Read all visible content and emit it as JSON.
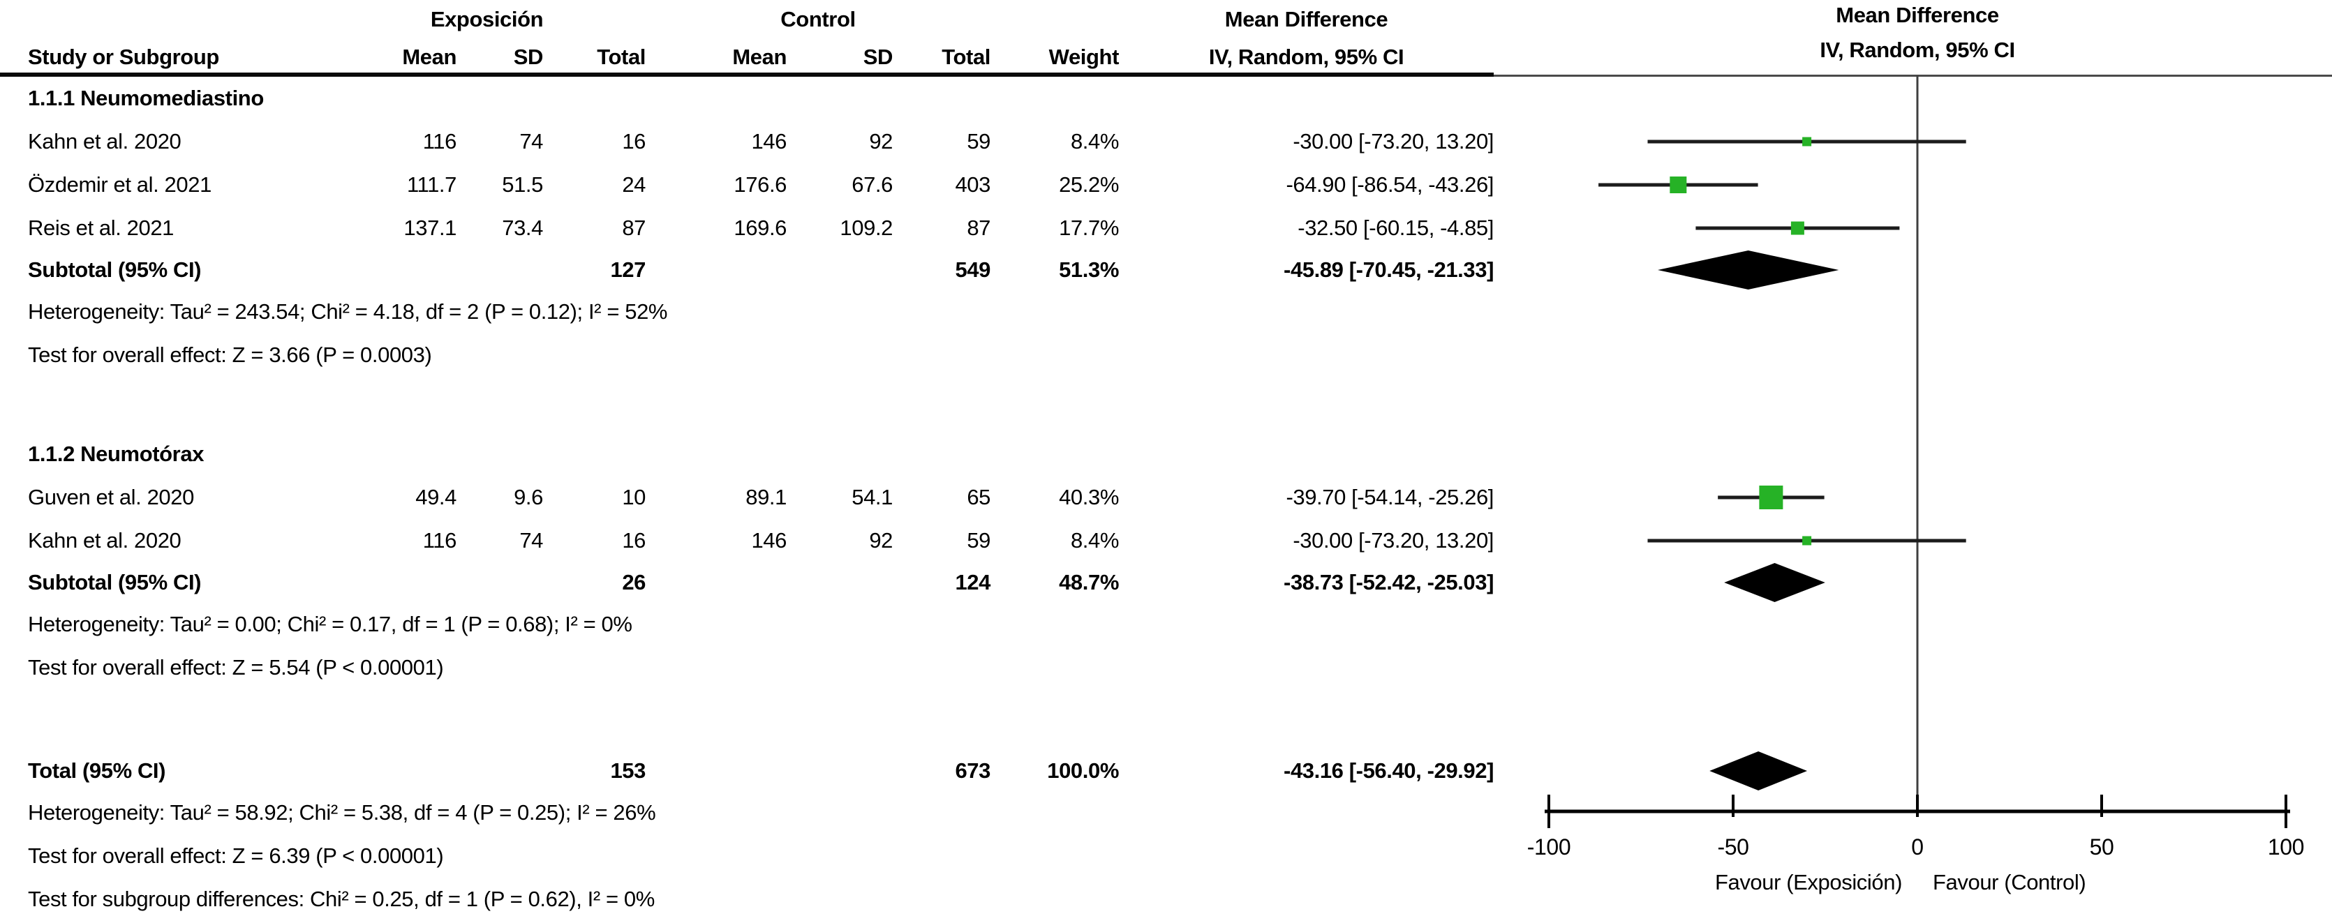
{
  "header": {
    "exp_group": "Exposición",
    "ctl_group": "Control",
    "md_col_title": "Mean Difference",
    "md_plot_title": "Mean Difference",
    "study": "Study or Subgroup",
    "mean": "Mean",
    "sd": "SD",
    "total": "Total",
    "weight": "Weight",
    "ci_method": "IV, Random, 95% CI",
    "ci_method_plot": "IV, Random, 95% CI"
  },
  "colors": {
    "marker_green": "#26b226",
    "diamond_black": "#000000",
    "ci_line": "#1c1c1c",
    "zero_line": "#3f3f3f",
    "axis": "#000000",
    "divider": "#0a0a0a"
  },
  "chart_data": {
    "type": "forest",
    "effect_measure": "Mean Difference, IV, Random, 95% CI",
    "axis": {
      "min": -100,
      "max": 100,
      "ticks": [
        -100,
        -50,
        0,
        50,
        100
      ],
      "tick_labels": [
        "-100",
        "-50",
        "0",
        "50",
        "100"
      ],
      "left_label": "Favour (Exposición)",
      "right_label": "Favour (Control)"
    },
    "groups": [
      {
        "title": "1.1.1 Neumomediastino",
        "studies": [
          {
            "study": "Kahn et al. 2020",
            "exp_mean": "116",
            "exp_sd": "74",
            "exp_total": "16",
            "ctl_mean": "146",
            "ctl_sd": "92",
            "ctl_total": "59",
            "weight": "8.4%",
            "weight_pct": 8.4,
            "ci_text": "-30.00 [-73.20, 13.20]",
            "est": -30.0,
            "lo": -73.2,
            "hi": 13.2
          },
          {
            "study": "Özdemir et al. 2021",
            "exp_mean": "111.7",
            "exp_sd": "51.5",
            "exp_total": "24",
            "ctl_mean": "176.6",
            "ctl_sd": "67.6",
            "ctl_total": "403",
            "weight": "25.2%",
            "weight_pct": 25.2,
            "ci_text": "-64.90 [-86.54, -43.26]",
            "est": -64.9,
            "lo": -86.54,
            "hi": -43.26
          },
          {
            "study": "Reis et al. 2021",
            "exp_mean": "137.1",
            "exp_sd": "73.4",
            "exp_total": "87",
            "ctl_mean": "169.6",
            "ctl_sd": "109.2",
            "ctl_total": "87",
            "weight": "17.7%",
            "weight_pct": 17.7,
            "ci_text": "-32.50 [-60.15, -4.85]",
            "est": -32.5,
            "lo": -60.15,
            "hi": -4.85
          }
        ],
        "subtotal": {
          "label": "Subtotal (95% CI)",
          "exp_total": "127",
          "ctl_total": "549",
          "weight": "51.3%",
          "ci_text": "-45.89 [-70.45, -21.33]",
          "est": -45.89,
          "lo": -70.45,
          "hi": -21.33
        },
        "notes": [
          "Heterogeneity: Tau² = 243.54; Chi² = 4.18, df = 2 (P = 0.12); I² = 52%",
          "Test for overall effect: Z = 3.66 (P = 0.0003)"
        ]
      },
      {
        "title": "1.1.2 Neumotórax",
        "studies": [
          {
            "study": "Guven et al. 2020",
            "exp_mean": "49.4",
            "exp_sd": "9.6",
            "exp_total": "10",
            "ctl_mean": "89.1",
            "ctl_sd": "54.1",
            "ctl_total": "65",
            "weight": "40.3%",
            "weight_pct": 40.3,
            "ci_text": "-39.70 [-54.14, -25.26]",
            "est": -39.7,
            "lo": -54.14,
            "hi": -25.26
          },
          {
            "study": "Kahn et al. 2020",
            "exp_mean": "116",
            "exp_sd": "74",
            "exp_total": "16",
            "ctl_mean": "146",
            "ctl_sd": "92",
            "ctl_total": "59",
            "weight": "8.4%",
            "weight_pct": 8.4,
            "ci_text": "-30.00 [-73.20, 13.20]",
            "est": -30.0,
            "lo": -73.2,
            "hi": 13.2
          }
        ],
        "subtotal": {
          "label": "Subtotal (95% CI)",
          "exp_total": "26",
          "ctl_total": "124",
          "weight": "48.7%",
          "ci_text": "-38.73 [-52.42, -25.03]",
          "est": -38.73,
          "lo": -52.42,
          "hi": -25.03
        },
        "notes": [
          "Heterogeneity: Tau² = 0.00; Chi² = 0.17, df = 1 (P = 0.68); I² = 0%",
          "Test for overall effect: Z = 5.54 (P < 0.00001)"
        ]
      }
    ],
    "total": {
      "label": "Total (95% CI)",
      "exp_total": "153",
      "ctl_total": "673",
      "weight": "100.0%",
      "ci_text": "-43.16 [-56.40, -29.92]",
      "est": -43.16,
      "lo": -56.4,
      "hi": -29.92
    },
    "total_notes": [
      "Heterogeneity: Tau² = 58.92; Chi² = 5.38, df = 4 (P = 0.25); I² = 26%",
      "Test for overall effect: Z = 6.39 (P < 0.00001)",
      "Test for subgroup differences: Chi² = 0.25, df = 1 (P = 0.62), I² = 0%"
    ]
  }
}
